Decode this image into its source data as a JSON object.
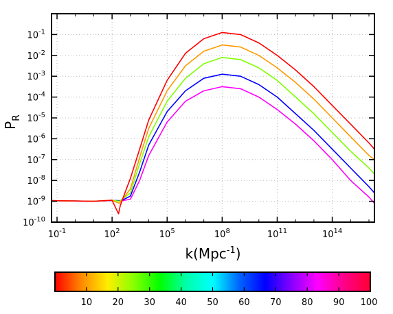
{
  "chart_data": {
    "type": "line",
    "title": "",
    "xlabel": "k(Mpc-1)",
    "xlabel_base": "k(Mpc",
    "xlabel_exp": "-1",
    "xlabel_tail": ")",
    "ylabel": "PR",
    "ylabel_base": "P",
    "ylabel_sub": "R",
    "x_scale": "log",
    "y_scale": "log",
    "xlim_log10": [
      -1.3,
      16.3
    ],
    "ylim_log10": [
      -10,
      0
    ],
    "grid": "dotted",
    "legend": "colorbar-bottom",
    "x_ticks": [
      {
        "base": "10",
        "exp": "-1",
        "log10": -1
      },
      {
        "base": "10",
        "exp": "2",
        "log10": 2
      },
      {
        "base": "10",
        "exp": "5",
        "log10": 5
      },
      {
        "base": "10",
        "exp": "8",
        "log10": 8
      },
      {
        "base": "10",
        "exp": "11",
        "log10": 11
      },
      {
        "base": "10",
        "exp": "14",
        "log10": 14
      }
    ],
    "y_ticks": [
      {
        "base": "10",
        "exp": "-1",
        "log10": -1
      },
      {
        "base": "10",
        "exp": "-2",
        "log10": -2
      },
      {
        "base": "10",
        "exp": "-3",
        "log10": -3
      },
      {
        "base": "10",
        "exp": "-4",
        "log10": -4
      },
      {
        "base": "10",
        "exp": "-5",
        "log10": -5
      },
      {
        "base": "10",
        "exp": "-6",
        "log10": -6
      },
      {
        "base": "10",
        "exp": "-7",
        "log10": -7
      },
      {
        "base": "10",
        "exp": "-8",
        "log10": -8
      },
      {
        "base": "10",
        "exp": "-9",
        "log10": -9
      },
      {
        "base": "10",
        "exp": "-10",
        "log10": -10
      }
    ],
    "series": [
      {
        "color": "#ff00ff",
        "points": [
          [
            -1.3,
            -8.97
          ],
          [
            1.0,
            -9.0
          ],
          [
            2.0,
            -8.96
          ],
          [
            2.5,
            -8.98
          ],
          [
            3.0,
            -8.9
          ],
          [
            3.5,
            -8.0
          ],
          [
            4.0,
            -6.8
          ],
          [
            5.0,
            -5.2
          ],
          [
            6.0,
            -4.2
          ],
          [
            7.0,
            -3.7
          ],
          [
            8.0,
            -3.5
          ],
          [
            9.0,
            -3.6
          ],
          [
            10.0,
            -4.0
          ],
          [
            11.0,
            -4.6
          ],
          [
            12.0,
            -5.3
          ],
          [
            13.0,
            -6.1
          ],
          [
            14.0,
            -7.0
          ],
          [
            15.0,
            -8.0
          ],
          [
            16.0,
            -8.8
          ],
          [
            16.3,
            -9.1
          ]
        ]
      },
      {
        "color": "#0000ff",
        "points": [
          [
            -1.3,
            -8.97
          ],
          [
            1.0,
            -9.0
          ],
          [
            2.0,
            -8.96
          ],
          [
            2.5,
            -8.97
          ],
          [
            3.0,
            -8.75
          ],
          [
            3.5,
            -7.6
          ],
          [
            4.0,
            -6.3
          ],
          [
            5.0,
            -4.7
          ],
          [
            6.0,
            -3.7
          ],
          [
            7.0,
            -3.1
          ],
          [
            8.0,
            -2.9
          ],
          [
            9.0,
            -3.0
          ],
          [
            10.0,
            -3.4
          ],
          [
            11.0,
            -4.0
          ],
          [
            12.0,
            -4.8
          ],
          [
            13.0,
            -5.6
          ],
          [
            14.0,
            -6.5
          ],
          [
            15.0,
            -7.4
          ],
          [
            16.0,
            -8.3
          ],
          [
            16.3,
            -8.6
          ]
        ]
      },
      {
        "color": "#80ff00",
        "points": [
          [
            -1.3,
            -8.97
          ],
          [
            1.0,
            -9.0
          ],
          [
            2.0,
            -8.95
          ],
          [
            2.4,
            -9.0
          ],
          [
            3.0,
            -8.6
          ],
          [
            3.5,
            -7.2
          ],
          [
            4.0,
            -5.9
          ],
          [
            5.0,
            -4.2
          ],
          [
            6.0,
            -3.1
          ],
          [
            7.0,
            -2.4
          ],
          [
            8.0,
            -2.1
          ],
          [
            9.0,
            -2.2
          ],
          [
            10.0,
            -2.6
          ],
          [
            11.0,
            -3.2
          ],
          [
            12.0,
            -4.0
          ],
          [
            13.0,
            -4.8
          ],
          [
            14.0,
            -5.7
          ],
          [
            15.0,
            -6.6
          ],
          [
            16.0,
            -7.4
          ],
          [
            16.3,
            -7.7
          ]
        ]
      },
      {
        "color": "#ff9900",
        "points": [
          [
            -1.3,
            -8.97
          ],
          [
            1.0,
            -9.0
          ],
          [
            2.0,
            -8.95
          ],
          [
            2.4,
            -9.1
          ],
          [
            3.0,
            -8.4
          ],
          [
            3.5,
            -6.9
          ],
          [
            4.0,
            -5.5
          ],
          [
            5.0,
            -3.7
          ],
          [
            6.0,
            -2.5
          ],
          [
            7.0,
            -1.8
          ],
          [
            8.0,
            -1.5
          ],
          [
            9.0,
            -1.6
          ],
          [
            10.0,
            -2.0
          ],
          [
            11.0,
            -2.6
          ],
          [
            12.0,
            -3.3
          ],
          [
            13.0,
            -4.1
          ],
          [
            14.0,
            -5.0
          ],
          [
            15.0,
            -5.9
          ],
          [
            16.0,
            -6.8
          ],
          [
            16.3,
            -7.0
          ]
        ]
      },
      {
        "color": "#ff0000",
        "points": [
          [
            -1.3,
            -8.97
          ],
          [
            1.0,
            -9.0
          ],
          [
            2.0,
            -8.95
          ],
          [
            2.35,
            -9.6
          ],
          [
            2.45,
            -9.2
          ],
          [
            2.7,
            -8.6
          ],
          [
            3.0,
            -7.9
          ],
          [
            3.5,
            -6.5
          ],
          [
            4.0,
            -5.1
          ],
          [
            5.0,
            -3.2
          ],
          [
            6.0,
            -1.9
          ],
          [
            7.0,
            -1.2
          ],
          [
            8.0,
            -0.9
          ],
          [
            9.0,
            -1.0
          ],
          [
            10.0,
            -1.4
          ],
          [
            11.0,
            -2.0
          ],
          [
            12.0,
            -2.7
          ],
          [
            13.0,
            -3.5
          ],
          [
            14.0,
            -4.4
          ],
          [
            15.0,
            -5.3
          ],
          [
            16.0,
            -6.2
          ],
          [
            16.3,
            -6.5
          ]
        ]
      }
    ],
    "colorbar": {
      "range": [
        0,
        100
      ],
      "tick_labels": [
        "10",
        "20",
        "30",
        "40",
        "50",
        "60",
        "70",
        "80",
        "90",
        "100"
      ],
      "tick_values": [
        10,
        20,
        30,
        40,
        50,
        60,
        70,
        80,
        90,
        100
      ],
      "stops": [
        "#ff0000",
        "#ff8800",
        "#ffee00",
        "#88ff00",
        "#00ff00",
        "#00ffaa",
        "#00ffff",
        "#0066ff",
        "#0000ff",
        "#8800ff",
        "#ff00ff",
        "#ff0088",
        "#ff0033"
      ]
    }
  }
}
